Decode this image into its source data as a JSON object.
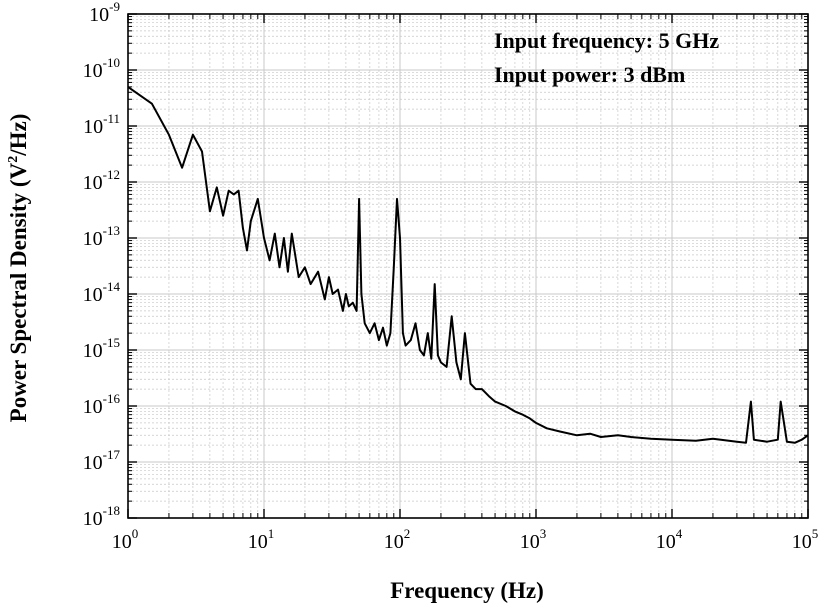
{
  "chart_data": {
    "type": "line",
    "title": "",
    "xlabel": "Frequency (Hz)",
    "ylabel_main": "Power Spectral Density (V",
    "ylabel_sup": "2",
    "ylabel_tail": "/Hz)",
    "xscale": "log",
    "yscale": "log",
    "xlim": [
      1,
      100000
    ],
    "ylim": [
      1e-18,
      1e-09
    ],
    "grid": true,
    "legend": "none",
    "x_ticks": [
      {
        "base": "10",
        "exp": "0"
      },
      {
        "base": "10",
        "exp": "1"
      },
      {
        "base": "10",
        "exp": "2"
      },
      {
        "base": "10",
        "exp": "3"
      },
      {
        "base": "10",
        "exp": "4"
      },
      {
        "base": "10",
        "exp": "5"
      }
    ],
    "y_ticks": [
      {
        "base": "10",
        "exp": "-18"
      },
      {
        "base": "10",
        "exp": "-17"
      },
      {
        "base": "10",
        "exp": "-16"
      },
      {
        "base": "10",
        "exp": "-15"
      },
      {
        "base": "10",
        "exp": "-14"
      },
      {
        "base": "10",
        "exp": "-13"
      },
      {
        "base": "10",
        "exp": "-12"
      },
      {
        "base": "10",
        "exp": "-11"
      },
      {
        "base": "10",
        "exp": "-10"
      },
      {
        "base": "10",
        "exp": "-9"
      }
    ],
    "annotations": [
      "Input frequency: 5 GHz",
      "Input power: 3 dBm"
    ],
    "line_color": "#000000",
    "grid_color": "#c8c8c8",
    "series": [
      {
        "x": [
          1,
          1.5,
          2,
          2.5,
          3,
          3.5,
          4,
          4.5,
          5,
          5.5,
          6,
          6.5,
          7,
          7.5,
          8,
          9,
          10,
          11,
          12,
          13,
          14,
          15,
          16,
          18,
          20,
          22,
          25,
          28,
          30,
          32,
          35,
          38,
          40,
          42,
          45,
          48,
          50,
          52,
          55,
          60,
          65,
          70,
          75,
          80,
          85,
          90,
          95,
          100,
          105,
          110,
          120,
          130,
          140,
          150,
          160,
          170,
          180,
          190,
          200,
          220,
          240,
          260,
          280,
          300,
          330,
          360,
          400,
          450,
          500,
          600,
          700,
          800,
          900,
          1000,
          1200,
          1500,
          2000,
          2500,
          3000,
          4000,
          5000,
          7000,
          10000,
          15000,
          20000,
          30000,
          35000,
          38000,
          40000,
          50000,
          60000,
          63000,
          70000,
          80000,
          90000,
          100000
        ],
        "y": [
          5e-11,
          2.5e-11,
          7e-12,
          1.8e-12,
          7e-12,
          3.5e-12,
          3e-13,
          8e-13,
          2.5e-13,
          7e-13,
          6e-13,
          7e-13,
          1.5e-13,
          6e-14,
          2e-13,
          5e-13,
          1e-13,
          4e-14,
          1.2e-13,
          3e-14,
          1e-13,
          2.5e-14,
          1.2e-13,
          2e-14,
          3e-14,
          1.5e-14,
          2.5e-14,
          8e-15,
          2e-14,
          1e-14,
          1.2e-14,
          5e-15,
          1e-14,
          6e-15,
          7e-15,
          5e-15,
          5e-13,
          1e-14,
          3e-15,
          2e-15,
          3e-15,
          1.5e-15,
          2.5e-15,
          1.2e-15,
          2e-15,
          3e-14,
          5e-13,
          1e-13,
          2e-15,
          1.2e-15,
          1.5e-15,
          3e-15,
          1e-15,
          8e-16,
          2e-15,
          7e-16,
          1.5e-14,
          8e-16,
          6e-16,
          5e-16,
          4e-15,
          6e-16,
          3e-16,
          2e-15,
          2.5e-16,
          2e-16,
          2e-16,
          1.5e-16,
          1.2e-16,
          1e-16,
          8e-17,
          7e-17,
          6e-17,
          5e-17,
          4e-17,
          3.5e-17,
          3e-17,
          3.2e-17,
          2.8e-17,
          3e-17,
          2.8e-17,
          2.6e-17,
          2.5e-17,
          2.4e-17,
          2.6e-17,
          2.3e-17,
          2.2e-17,
          1.2e-16,
          2.5e-17,
          2.3e-17,
          2.5e-17,
          1.2e-16,
          2.3e-17,
          2.2e-17,
          2.5e-17,
          3e-17
        ]
      }
    ]
  }
}
